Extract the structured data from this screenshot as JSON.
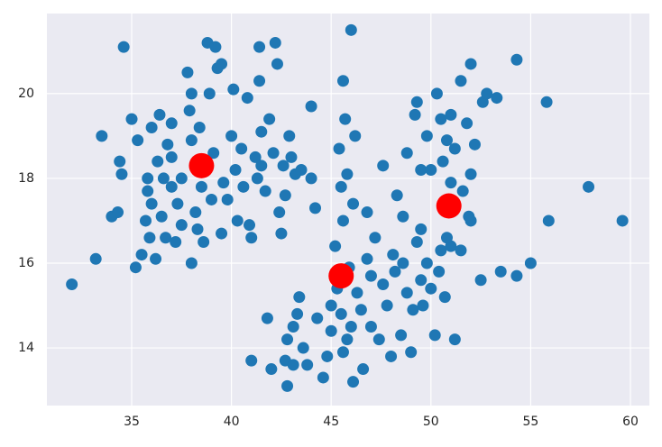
{
  "chart_data": {
    "type": "scatter",
    "xlim": [
      30.75,
      60.95
    ],
    "ylim": [
      12.64,
      21.89
    ],
    "xticks": [
      35,
      40,
      45,
      50,
      55,
      60
    ],
    "yticks": [
      14,
      16,
      18,
      20
    ],
    "grid": true,
    "series": [
      {
        "color": "#1f77b4",
        "x": [
          32,
          33.2,
          33.5,
          34,
          34.3,
          34.4,
          34.5,
          34.6,
          35,
          35.2,
          35.3,
          35.5,
          35.7,
          35.8,
          35.8,
          35.9,
          36,
          36,
          36.2,
          36.3,
          36.4,
          36.5,
          36.6,
          36.7,
          36.8,
          37,
          37,
          37,
          37.2,
          37.3,
          37.5,
          37.5,
          37.8,
          37.9,
          38,
          38,
          38,
          38.2,
          38.3,
          38.4,
          38.5,
          38.6,
          38.8,
          38.9,
          39,
          39.1,
          39.2,
          39.3,
          39.5,
          39.5,
          39.6,
          39.8,
          40,
          40.1,
          40.2,
          40.3,
          40.5,
          40.6,
          40.8,
          40.9,
          41,
          41.2,
          41.3,
          41.4,
          41.4,
          41.5,
          41.5,
          41.7,
          41.9,
          42.1,
          42.2,
          42.3,
          42.4,
          42.5,
          42.6,
          42.7,
          42.9,
          43,
          43.2,
          43.5,
          44,
          44,
          44.2,
          41,
          41.8,
          42,
          42.7,
          42.8,
          42.8,
          43.1,
          43.1,
          43.3,
          43.4,
          43.6,
          43.8,
          44.3,
          44.6,
          44.8,
          45,
          45,
          45.2,
          45.3,
          45.5,
          45.6,
          45.8,
          45.9,
          46,
          46.1,
          46.3,
          46.5,
          46.6,
          46.8,
          47,
          47,
          47.2,
          47.4,
          47.6,
          47.8,
          48,
          48.2,
          48.5,
          48.6,
          48.8,
          49,
          49.1,
          49.3,
          49.5,
          49.6,
          49.8,
          50,
          50.2,
          50.4,
          50.5,
          50.7,
          51,
          51.2,
          45.5,
          45.6,
          45.8,
          46.1,
          46.8,
          47.6,
          46,
          45.6,
          45.7,
          46.2,
          45.4,
          48.1,
          48.6,
          49.5,
          48.8,
          49.2,
          49.3,
          49.5,
          49.8,
          50,
          50.3,
          50.5,
          50.6,
          50.8,
          51,
          51,
          51.2,
          51.5,
          51.6,
          51.8,
          51.9,
          52,
          52,
          52.2,
          52.6,
          52.8,
          53.3,
          53.5,
          52.5,
          54.3,
          54.3,
          55,
          55.8,
          55.9,
          57.9,
          59.6,
          52,
          51.5,
          50.8,
          48.3
        ],
        "values": [
          15.5,
          16.1,
          19,
          17.1,
          17.2,
          18.4,
          18.1,
          21.1,
          19.4,
          15.9,
          18.9,
          16.2,
          17,
          17.7,
          18,
          16.6,
          19.2,
          17.4,
          16.1,
          18.4,
          19.5,
          17.1,
          18,
          16.6,
          18.8,
          19.3,
          18.5,
          17.8,
          16.5,
          17.4,
          18,
          16.9,
          20.5,
          19.6,
          18.9,
          16,
          20,
          17.2,
          16.8,
          19.2,
          17.8,
          16.5,
          21.2,
          20,
          17.5,
          18.6,
          21.1,
          20.6,
          20.7,
          16.7,
          17.9,
          17.5,
          19,
          20.1,
          18.2,
          17,
          18.7,
          17.8,
          19.9,
          16.9,
          16.6,
          18.5,
          18,
          21.1,
          20.3,
          19.1,
          18.3,
          17.7,
          19.4,
          18.6,
          21.2,
          20.7,
          17.2,
          16.7,
          18.3,
          17.6,
          19,
          18.5,
          18.1,
          18.2,
          18,
          19.7,
          17.3,
          13.7,
          14.7,
          13.5,
          13.7,
          14.2,
          13.1,
          13.6,
          14.5,
          14.8,
          15.2,
          14,
          13.6,
          14.7,
          13.3,
          13.8,
          14.4,
          15,
          16.4,
          15.4,
          14.8,
          13.9,
          14.2,
          15.9,
          14.5,
          13.2,
          15.3,
          14.9,
          13.5,
          16.1,
          14.5,
          15.7,
          16.6,
          14.2,
          15.5,
          15,
          13.8,
          15.8,
          14.3,
          16,
          15.3,
          13.9,
          14.9,
          16.5,
          15.6,
          15,
          16,
          15.4,
          14.3,
          15.8,
          16.3,
          15.2,
          16.4,
          14.2,
          17.8,
          17,
          18.1,
          17.4,
          17.2,
          18.3,
          21.5,
          20.3,
          19.4,
          19,
          18.7,
          16.2,
          17.1,
          16.8,
          18.6,
          19.5,
          19.8,
          18.2,
          19,
          18.2,
          20,
          19.4,
          18.4,
          18.9,
          19.5,
          17.9,
          18.7,
          20.3,
          17.7,
          19.3,
          17.1,
          20.7,
          18.1,
          18.8,
          19.8,
          20,
          19.9,
          15.8,
          15.6,
          20.8,
          15.7,
          16,
          19.8,
          17,
          17.8,
          17,
          17,
          16.3,
          16.6,
          17.6
        ]
      },
      {
        "color": "#ff0000",
        "x": [
          38.5,
          45.5,
          50.9
        ],
        "values": [
          18.3,
          15.7,
          17.35
        ]
      }
    ]
  }
}
